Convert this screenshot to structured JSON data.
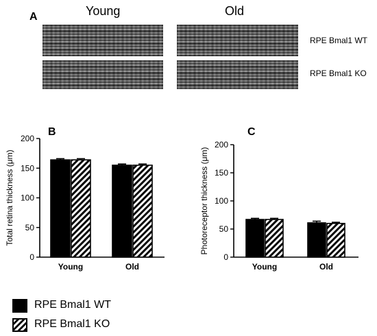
{
  "panel_a": {
    "letter": "A",
    "col_young": "Young",
    "col_old": "Old",
    "row_wt": "RPE Bmal1 WT",
    "row_ko": "RPE Bmal1 KO"
  },
  "legend": {
    "wt": "RPE Bmal1 WT",
    "ko": "RPE Bmal1 KO"
  },
  "colors": {
    "wt": "#000000",
    "ko_hatch": "#000000",
    "background": "#ffffff"
  },
  "chart_data": [
    {
      "type": "bar",
      "panel": "B",
      "categories": [
        "Young",
        "Old"
      ],
      "series": [
        {
          "name": "RPE Bmal1 WT",
          "values": [
            164,
            155
          ],
          "errors": [
            2,
            2
          ],
          "fill": "solid"
        },
        {
          "name": "RPE Bmal1 KO",
          "values": [
            164,
            155
          ],
          "errors": [
            2,
            2
          ],
          "fill": "hatch"
        }
      ],
      "ylabel": "Total retina thickness (μm)",
      "ylim": [
        0,
        200
      ],
      "yticks": [
        0,
        50,
        100,
        150,
        200
      ]
    },
    {
      "type": "bar",
      "panel": "C",
      "categories": [
        "Young",
        "Old"
      ],
      "series": [
        {
          "name": "RPE Bmal1 WT",
          "values": [
            67,
            61
          ],
          "errors": [
            2,
            3
          ],
          "fill": "solid"
        },
        {
          "name": "RPE Bmal1 KO",
          "values": [
            67,
            60
          ],
          "errors": [
            2,
            2
          ],
          "fill": "hatch"
        }
      ],
      "ylabel": "Photoreceptor thickness (μm)",
      "ylim": [
        0,
        200
      ],
      "yticks": [
        0,
        50,
        100,
        150,
        200
      ]
    }
  ]
}
